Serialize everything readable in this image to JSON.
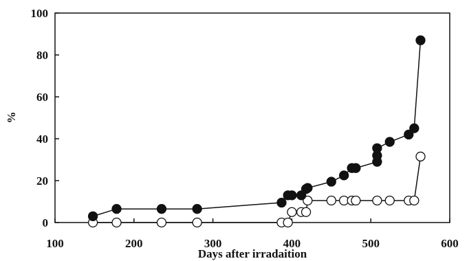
{
  "chart_data": {
    "type": "line",
    "xlabel": "Days after irradaition",
    "ylabel": "%",
    "xlim": [
      100,
      600
    ],
    "ylim": [
      0,
      100
    ],
    "xticks": [
      100,
      200,
      300,
      400,
      500,
      600
    ],
    "yticks": [
      0,
      20,
      40,
      60,
      80,
      100
    ],
    "grid": false,
    "colors": {
      "filled": "#111111",
      "open": "#ffffff",
      "line": "#111111"
    },
    "series": [
      {
        "marker": "filled-circle",
        "x": [
          148,
          178,
          235,
          280,
          387,
          395,
          400,
          412,
          418,
          420,
          450,
          466,
          476,
          481,
          508,
          508,
          508,
          524,
          548,
          555,
          563
        ],
        "y": [
          3,
          6.5,
          6.5,
          6.5,
          9.5,
          13,
          13,
          13,
          16,
          16.5,
          19.5,
          22.5,
          26,
          26,
          29,
          32,
          35.5,
          38.5,
          42,
          45,
          87
        ]
      },
      {
        "marker": "open-circle",
        "x": [
          148,
          178,
          235,
          280,
          387,
          395,
          400,
          412,
          418,
          420,
          450,
          466,
          476,
          481,
          508,
          524,
          548,
          555,
          563
        ],
        "y": [
          0,
          0,
          0,
          0,
          0,
          0,
          5,
          5,
          5,
          10.5,
          10.5,
          10.5,
          10.5,
          10.5,
          10.5,
          10.5,
          10.5,
          10.5,
          31.5
        ]
      }
    ]
  }
}
